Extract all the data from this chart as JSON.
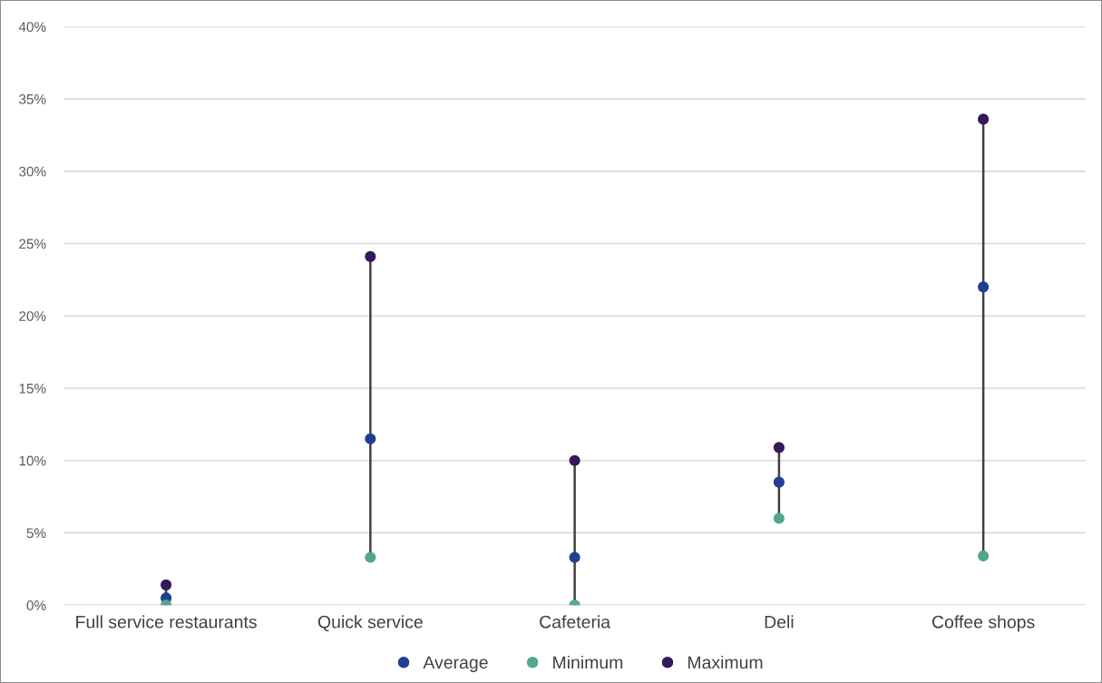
{
  "chart_data": {
    "type": "scatter",
    "categories": [
      "Full service restaurants",
      "Quick service",
      "Cafeteria",
      "Deli",
      "Coffee shops"
    ],
    "series": [
      {
        "type": "line",
        "color": "#404040",
        "marker": "none",
        "x": [
          "Full service restaurants",
          "Full service restaurants"
        ],
        "values": [
          0,
          1.4
        ]
      },
      {
        "type": "line",
        "color": "#404040",
        "marker": "none",
        "x": [
          "Quick service",
          "Quick service"
        ],
        "values": [
          3.3,
          24.1
        ]
      },
      {
        "type": "line",
        "color": "#404040",
        "marker": "none",
        "x": [
          "Cafeteria",
          "Cafeteria"
        ],
        "values": [
          0,
          10.0
        ]
      },
      {
        "type": "line",
        "color": "#404040",
        "marker": "none",
        "x": [
          "Deli",
          "Deli"
        ],
        "values": [
          6.0,
          10.9
        ]
      },
      {
        "type": "line",
        "color": "#404040",
        "marker": "none",
        "x": [
          "Coffee shops",
          "Coffee shops"
        ],
        "values": [
          3.4,
          33.6
        ]
      },
      {
        "name": "Average",
        "color": "#203e92",
        "values": [
          0.5,
          11.5,
          3.3,
          8.5,
          22.0
        ]
      },
      {
        "name": "Minimum",
        "color": "#52a88f",
        "values": [
          0,
          3.3,
          0,
          6.0,
          3.4
        ]
      },
      {
        "name": "Maximum",
        "color": "#35195a",
        "values": [
          1.4,
          24.1,
          10.0,
          10.9,
          33.6
        ]
      }
    ],
    "ylim": [
      0,
      40
    ],
    "yticks": [
      {
        "value": 0,
        "label": "0%"
      },
      {
        "value": 5,
        "label": "5%"
      },
      {
        "value": 10,
        "label": "10%"
      },
      {
        "value": 15,
        "label": "15%"
      },
      {
        "value": 20,
        "label": "20%"
      },
      {
        "value": 25,
        "label": "25%"
      },
      {
        "value": 30,
        "label": "30%"
      },
      {
        "value": 35,
        "label": "35%"
      },
      {
        "value": 40,
        "label": "40%"
      }
    ],
    "grid": "y",
    "legend": "bottom",
    "marker": "circle"
  }
}
